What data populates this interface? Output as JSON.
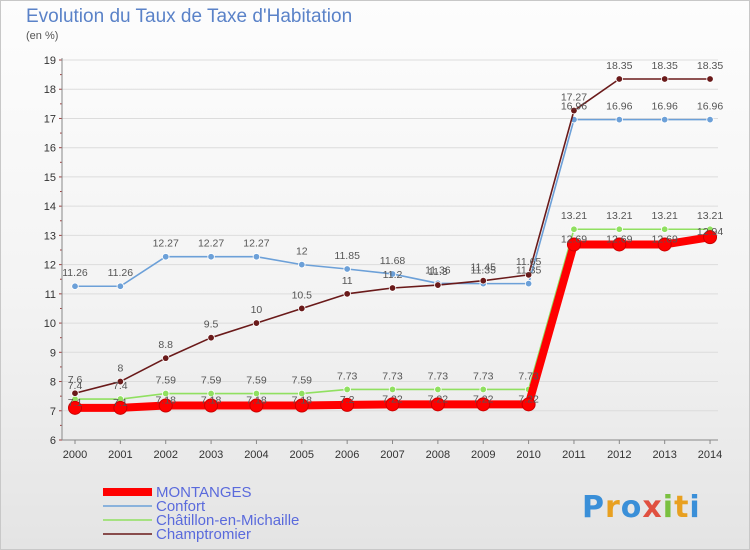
{
  "title": "Evolution du Taux de Taxe d'Habitation",
  "unit": "(en %)",
  "brand": "Proxiti",
  "chart_data": {
    "type": "line",
    "title": "Evolution du Taux de Taxe d'Habitation",
    "ylabel": "(en %)",
    "xlabel": "",
    "ylim": [
      6,
      19
    ],
    "yticks": [
      6,
      7,
      8,
      9,
      10,
      11,
      12,
      13,
      14,
      15,
      16,
      17,
      18,
      19
    ],
    "categories": [
      "2000",
      "2001",
      "2002",
      "2003",
      "2004",
      "2005",
      "2006",
      "2007",
      "2008",
      "2009",
      "2010",
      "2011",
      "2012",
      "2013",
      "2014"
    ],
    "grid": "horizontal",
    "legend_position": "bottom-left",
    "series": [
      {
        "name": "MONTANGES",
        "color": "#ff0000",
        "values": [
          7.1,
          7.1,
          7.18,
          7.18,
          7.18,
          7.18,
          7.2,
          7.22,
          7.22,
          7.22,
          7.22,
          12.69,
          12.69,
          12.69,
          12.94
        ]
      },
      {
        "name": "Confort",
        "color": "#6ca0d8",
        "values": [
          11.26,
          11.26,
          12.27,
          12.27,
          12.27,
          12,
          11.85,
          11.68,
          11.36,
          11.35,
          11.35,
          16.96,
          16.96,
          16.96,
          16.96
        ]
      },
      {
        "name": "Châtillon-en-Michaille",
        "color": "#90e060",
        "values": [
          7.4,
          7.4,
          7.59,
          7.59,
          7.59,
          7.59,
          7.73,
          7.73,
          7.73,
          7.73,
          7.73,
          13.21,
          13.21,
          13.21,
          13.21
        ]
      },
      {
        "name": "Champtromier",
        "color": "#6a1a1a",
        "values": [
          7.6,
          8,
          8.8,
          9.5,
          10,
          10.5,
          11,
          11.2,
          11.3,
          11.45,
          11.65,
          17.27,
          18.35,
          18.35,
          18.35
        ]
      }
    ],
    "data_labels": {
      "MONTANGES": [
        "7.1",
        "7.1",
        "7.18",
        "7.18",
        "7.18",
        "7.18",
        "7.2",
        "7.22",
        "7.22",
        "7.22",
        "7.22",
        "12.69",
        "12.69",
        "12.69",
        "12.94"
      ],
      "Confort": [
        "11.26",
        "11.26",
        "12.27",
        "12.27",
        "12.27",
        "12",
        "11.85",
        "11.68",
        "11.36",
        "11.35",
        "11.35",
        "16.96",
        "16.96",
        "16.96",
        "16.96"
      ],
      "Châtillon-en-Michaille": [
        "7.4",
        "7.4",
        "7.59",
        "7.59",
        "7.59",
        "7.59",
        "7.73",
        "7.73",
        "7.73",
        "7.73",
        "7.73",
        "13.21",
        "13.21",
        "13.21",
        "13.21"
      ],
      "Champtromier": [
        "7.6",
        "8",
        "8.8",
        "9.5",
        "10",
        "10.5",
        "11",
        "11.2",
        "11.3",
        "11.45",
        "11.65",
        "17.27",
        "18.35",
        "18.35",
        "18.35"
      ]
    }
  }
}
